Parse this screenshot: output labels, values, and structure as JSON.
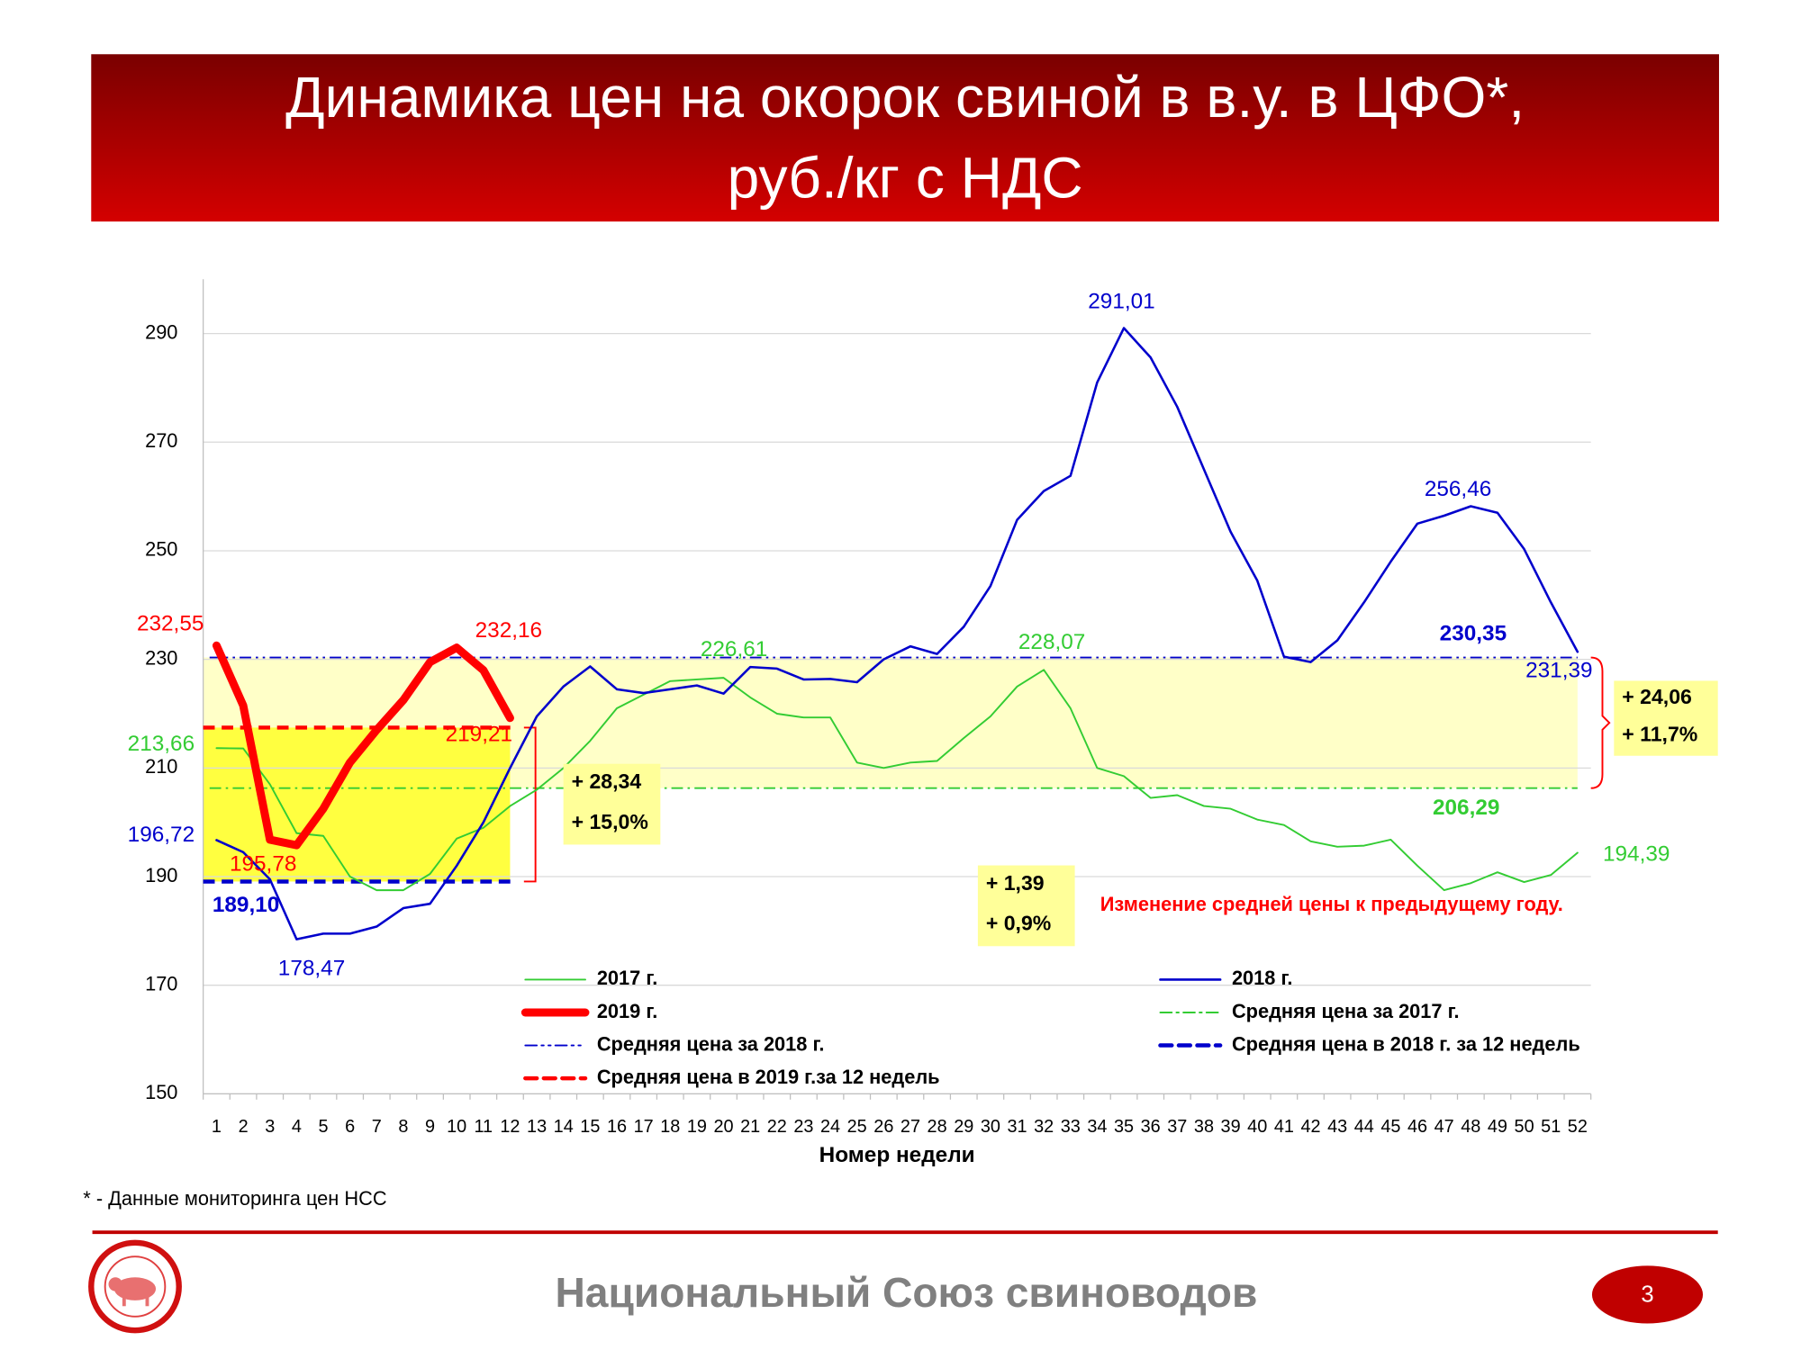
{
  "chart_data": {
    "type": "line",
    "title": [
      "Динамика цен на окорок свиной в в.у. в ЦФО*,",
      "руб./кг с НДС"
    ],
    "x_label": "Номер недели",
    "categories": [
      1,
      2,
      3,
      4,
      5,
      6,
      7,
      8,
      9,
      10,
      11,
      12,
      13,
      14,
      15,
      16,
      17,
      18,
      19,
      20,
      21,
      22,
      23,
      24,
      25,
      26,
      27,
      28,
      29,
      30,
      31,
      32,
      33,
      34,
      35,
      36,
      37,
      38,
      39,
      40,
      41,
      42,
      43,
      44,
      45,
      46,
      47,
      48,
      49,
      50,
      51,
      52
    ],
    "ylim": [
      150,
      300
    ],
    "yticks": [
      150,
      170,
      190,
      210,
      230,
      250,
      270,
      290
    ],
    "grid": true,
    "series": [
      {
        "name": "2017 г.",
        "color": "#33cc33",
        "width": 1.5,
        "values": [
          213.66,
          213.6,
          207,
          198,
          197.5,
          190,
          187.5,
          187.5,
          190.5,
          197,
          199,
          203,
          206,
          210,
          215,
          221,
          223.5,
          226,
          226.3,
          226.61,
          223,
          220,
          219.3,
          219.3,
          211,
          210,
          211,
          211.3,
          215.5,
          219.5,
          225,
          228.07,
          221,
          210,
          208.5,
          204.5,
          205,
          203,
          202.5,
          200.5,
          199.5,
          196.5,
          195.5,
          195.7,
          196.8,
          192,
          187.5,
          188.8,
          190.8,
          189,
          190.3,
          194.39
        ],
        "value_labels": [
          "213,66",
          null,
          null,
          null,
          null,
          null,
          null,
          null,
          null,
          null,
          null,
          null,
          null,
          null,
          null,
          null,
          null,
          null,
          null,
          "226,61",
          null,
          null,
          null,
          null,
          null,
          null,
          null,
          null,
          null,
          null,
          null,
          "228,07",
          null,
          null,
          null,
          null,
          null,
          null,
          null,
          null,
          null,
          null,
          null,
          null,
          null,
          null,
          null,
          null,
          null,
          null,
          null,
          "194,39"
        ]
      },
      {
        "name": "2018 г.",
        "color": "#0000cc",
        "width": 2,
        "values": [
          196.72,
          194.5,
          189.5,
          178.47,
          179.5,
          179.5,
          180.8,
          184.2,
          185,
          192,
          200,
          210,
          219.5,
          225,
          228.7,
          224.5,
          223.8,
          224.5,
          225.2,
          223.7,
          228.6,
          228.3,
          226.3,
          226.4,
          225.8,
          230,
          232.4,
          231,
          236,
          243.5,
          255.7,
          261,
          263.8,
          281,
          291.01,
          285.6,
          276.5,
          265,
          253.5,
          244.5,
          230.5,
          229.5,
          233.5,
          240.5,
          248,
          255,
          256.46,
          258.2,
          257,
          250.3,
          240.5,
          231.39
        ],
        "value_labels": [
          "196,72",
          null,
          null,
          "178,47",
          null,
          null,
          null,
          null,
          null,
          null,
          null,
          null,
          null,
          null,
          null,
          null,
          null,
          null,
          null,
          null,
          null,
          null,
          null,
          null,
          null,
          null,
          null,
          null,
          null,
          null,
          null,
          null,
          null,
          null,
          "291,01",
          null,
          null,
          null,
          null,
          null,
          null,
          null,
          null,
          null,
          null,
          null,
          "256,46",
          null,
          null,
          null,
          null,
          "231,39"
        ]
      },
      {
        "name": "2019 г.",
        "color": "#ff0000",
        "width": 7,
        "values": [
          232.55,
          221.5,
          196.8,
          195.78,
          202.5,
          211,
          217,
          222.5,
          229.5,
          232.16,
          228,
          219.21,
          null,
          null,
          null,
          null,
          null,
          null,
          null,
          null,
          null,
          null,
          null,
          null,
          null,
          null,
          null,
          null,
          null,
          null,
          null,
          null,
          null,
          null,
          null,
          null,
          null,
          null,
          null,
          null,
          null,
          null,
          null,
          null,
          null,
          null,
          null,
          null,
          null,
          null,
          null,
          null
        ],
        "value_labels": [
          "232,55",
          null,
          null,
          "195,78",
          null,
          null,
          null,
          null,
          null,
          "232,16",
          null,
          "219,21",
          null,
          null,
          null,
          null,
          null,
          null,
          null,
          null,
          null,
          null,
          null,
          null,
          null,
          null,
          null,
          null,
          null,
          null,
          null,
          null,
          null,
          null,
          null,
          null,
          null,
          null,
          null,
          null,
          null,
          null,
          null,
          null,
          null,
          null,
          null,
          null,
          null,
          null,
          null,
          null
        ]
      }
    ],
    "reference_lines": [
      {
        "name": "Средняя цена за 2017 г.",
        "color": "#33cc33",
        "value": 206.29,
        "value_label": "206,29",
        "style": "dashdot",
        "weeks": [
          1,
          52
        ]
      },
      {
        "name": "Средняя цена за 2018 г.",
        "color": "#0000cc",
        "value": 230.35,
        "value_label": "230,35",
        "style": "dashdotdot",
        "weeks": [
          1,
          52
        ]
      },
      {
        "name": "Средняя цена в 2018 г. за 12 недель",
        "color": "#0000cc",
        "value": 189.1,
        "value_label": "189,10",
        "style": "dashed",
        "weeks": [
          1,
          12
        ]
      },
      {
        "name": "Средняя цена в 2019 г.за 12 недель",
        "color": "#ff0000",
        "value": 217.44,
        "style": "dashed",
        "weeks": [
          1,
          12
        ]
      }
    ],
    "annotations": [
      {
        "lines": [
          "+ 28,34",
          "+ 15,0%"
        ]
      },
      {
        "lines": [
          "+ 1,39",
          "+ 0,9%"
        ]
      },
      {
        "lines": [
          "+ 24,06",
          "+ 11,7%"
        ]
      }
    ],
    "note": "Изменение средней цены к предыдущему году."
  },
  "footnote": "* - Данные мониторинга цен НСС",
  "footer": {
    "organization": "Национальный Союз свиноводов",
    "page": "3"
  }
}
